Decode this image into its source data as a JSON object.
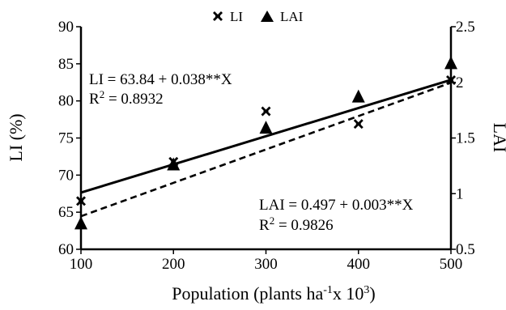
{
  "chart_data": {
    "type": "scatter",
    "xlabel": "Population (plants ha-1x 103)",
    "xlabel_parts": {
      "pre": "Population (plants ha",
      "sup1": "-1",
      "mid": "x 10",
      "sup2": "3",
      "post": ")"
    },
    "ylabel": "LI (%)",
    "y2label": "LAI",
    "x_ticks": [
      "100",
      "200",
      "300",
      "400",
      "500"
    ],
    "y_ticks": [
      "60",
      "65",
      "70",
      "75",
      "80",
      "85",
      "90"
    ],
    "y2_ticks": [
      "0.5",
      "1",
      "1.5",
      "2",
      "2.5"
    ],
    "xlim": [
      100,
      500
    ],
    "ylim": [
      60,
      90
    ],
    "y2lim": [
      0.5,
      2.5
    ],
    "grid": false,
    "legend_position": "top-center",
    "legend": [
      {
        "label": "LI",
        "marker": "asterisk-x"
      },
      {
        "label": "LAI",
        "marker": "triangle"
      }
    ],
    "series": [
      {
        "name": "LI",
        "axis": "left",
        "marker": "asterisk-x",
        "x": [
          100,
          200,
          300,
          400,
          500
        ],
        "y": [
          66.5,
          71.8,
          78.6,
          76.9,
          82.8
        ]
      },
      {
        "name": "LAI",
        "axis": "right",
        "marker": "triangle",
        "x": [
          100,
          200,
          300,
          400,
          500
        ],
        "y": [
          0.73,
          1.26,
          1.59,
          1.87,
          2.17
        ]
      }
    ],
    "fits": [
      {
        "series": "LI",
        "axis": "left",
        "style": "solid",
        "intercept": 63.84,
        "slope": 0.038,
        "equation": "LI = 63.84 + 0.038**X",
        "r2_prefix": "R",
        "r2_sup": "2",
        "r2_value": " = 0.8932"
      },
      {
        "series": "LAI",
        "axis": "right",
        "style": "dashed",
        "intercept": 0.497,
        "slope": 0.003,
        "equation": "LAI = 0.497 + 0.003**X",
        "r2_prefix": "R",
        "r2_sup": "2",
        "r2_value": " = 0.9826"
      }
    ]
  }
}
